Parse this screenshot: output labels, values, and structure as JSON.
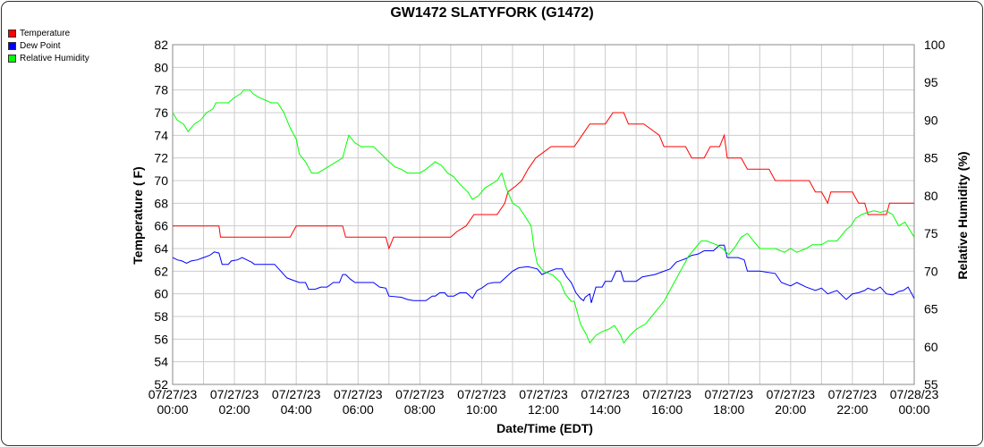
{
  "chart_data": {
    "type": "line",
    "title": "GW1472 SLATYFORK (G1472)",
    "xlabel": "Date/Time (EDT)",
    "ylabel_left": "Temperature ( F)",
    "ylabel_right": "Relative Humidity (%)",
    "x_ticks": [
      {
        "date": "07/27/23",
        "time": "00:00"
      },
      {
        "date": "07/27/23",
        "time": "02:00"
      },
      {
        "date": "07/27/23",
        "time": "04:00"
      },
      {
        "date": "07/27/23",
        "time": "06:00"
      },
      {
        "date": "07/27/23",
        "time": "08:00"
      },
      {
        "date": "07/27/23",
        "time": "10:00"
      },
      {
        "date": "07/27/23",
        "time": "12:00"
      },
      {
        "date": "07/27/23",
        "time": "14:00"
      },
      {
        "date": "07/27/23",
        "time": "16:00"
      },
      {
        "date": "07/27/23",
        "time": "18:00"
      },
      {
        "date": "07/27/23",
        "time": "20:00"
      },
      {
        "date": "07/27/23",
        "time": "22:00"
      },
      {
        "date": "07/28/23",
        "time": "00:00"
      }
    ],
    "x_range_hours": [
      0,
      24
    ],
    "ylim_left": [
      52,
      82
    ],
    "ylim_right": [
      55,
      100
    ],
    "yticks_left": [
      52,
      54,
      56,
      58,
      60,
      62,
      64,
      66,
      68,
      70,
      72,
      74,
      76,
      78,
      80,
      82
    ],
    "yticks_right": [
      55,
      60,
      65,
      70,
      75,
      80,
      85,
      90,
      95,
      100
    ],
    "grid": true,
    "legend_position": "top-left",
    "series": [
      {
        "name": "Temperature",
        "axis": "left",
        "color": "#ff0000",
        "points": [
          [
            0,
            66
          ],
          [
            1.5,
            66
          ],
          [
            1.55,
            65
          ],
          [
            3.8,
            65
          ],
          [
            4.0,
            66
          ],
          [
            5.5,
            66
          ],
          [
            5.6,
            65
          ],
          [
            6.9,
            65
          ],
          [
            7.0,
            64
          ],
          [
            7.15,
            65
          ],
          [
            9.0,
            65
          ],
          [
            9.2,
            65.5
          ],
          [
            9.5,
            66
          ],
          [
            9.75,
            67
          ],
          [
            10.5,
            67
          ],
          [
            10.75,
            68
          ],
          [
            10.85,
            69
          ],
          [
            11.1,
            69.5
          ],
          [
            11.3,
            70
          ],
          [
            11.5,
            71
          ],
          [
            11.75,
            72
          ],
          [
            12.0,
            72.5
          ],
          [
            12.25,
            73
          ],
          [
            13.0,
            73
          ],
          [
            13.25,
            74
          ],
          [
            13.5,
            75
          ],
          [
            14.0,
            75
          ],
          [
            14.25,
            76
          ],
          [
            14.6,
            76
          ],
          [
            14.75,
            75
          ],
          [
            15.25,
            75
          ],
          [
            15.5,
            74.5
          ],
          [
            15.75,
            74
          ],
          [
            15.9,
            73
          ],
          [
            16.6,
            73
          ],
          [
            16.8,
            72
          ],
          [
            17.2,
            72
          ],
          [
            17.4,
            73
          ],
          [
            17.7,
            73
          ],
          [
            17.85,
            74
          ],
          [
            17.95,
            72
          ],
          [
            18.4,
            72
          ],
          [
            18.6,
            71
          ],
          [
            19.3,
            71
          ],
          [
            19.5,
            70
          ],
          [
            20.6,
            70
          ],
          [
            20.8,
            69
          ],
          [
            21.0,
            69
          ],
          [
            21.2,
            68
          ],
          [
            21.3,
            69
          ],
          [
            22.0,
            69
          ],
          [
            22.2,
            68
          ],
          [
            22.4,
            68
          ],
          [
            22.5,
            67
          ],
          [
            23.1,
            67
          ],
          [
            23.2,
            68
          ],
          [
            24.0,
            68
          ]
        ]
      },
      {
        "name": "Dew Point",
        "axis": "left",
        "color": "#0000ff",
        "points": [
          [
            0,
            63.2
          ],
          [
            0.15,
            63
          ],
          [
            0.3,
            62.9
          ],
          [
            0.45,
            62.7
          ],
          [
            0.6,
            62.9
          ],
          [
            0.8,
            63
          ],
          [
            1.0,
            63.2
          ],
          [
            1.2,
            63.4
          ],
          [
            1.35,
            63.7
          ],
          [
            1.5,
            63.6
          ],
          [
            1.6,
            62.6
          ],
          [
            1.8,
            62.6
          ],
          [
            1.9,
            62.9
          ],
          [
            2.1,
            63
          ],
          [
            2.25,
            63.2
          ],
          [
            2.4,
            63
          ],
          [
            2.55,
            62.8
          ],
          [
            2.65,
            62.6
          ],
          [
            3.0,
            62.6
          ],
          [
            3.3,
            62.6
          ],
          [
            3.5,
            62
          ],
          [
            3.7,
            61.4
          ],
          [
            3.9,
            61.2
          ],
          [
            4.1,
            61
          ],
          [
            4.3,
            61
          ],
          [
            4.4,
            60.4
          ],
          [
            4.6,
            60.4
          ],
          [
            4.8,
            60.6
          ],
          [
            5.0,
            60.6
          ],
          [
            5.2,
            61
          ],
          [
            5.4,
            61
          ],
          [
            5.5,
            61.7
          ],
          [
            5.6,
            61.7
          ],
          [
            5.75,
            61.3
          ],
          [
            5.9,
            61
          ],
          [
            6.5,
            61
          ],
          [
            6.7,
            60.6
          ],
          [
            6.9,
            60.5
          ],
          [
            7.0,
            59.8
          ],
          [
            7.4,
            59.7
          ],
          [
            7.6,
            59.5
          ],
          [
            7.8,
            59.4
          ],
          [
            8.2,
            59.4
          ],
          [
            8.4,
            59.8
          ],
          [
            8.5,
            59.8
          ],
          [
            8.65,
            60.1
          ],
          [
            8.8,
            60.1
          ],
          [
            8.9,
            59.8
          ],
          [
            9.1,
            59.8
          ],
          [
            9.3,
            60.1
          ],
          [
            9.5,
            60.1
          ],
          [
            9.7,
            59.6
          ],
          [
            9.85,
            60.3
          ],
          [
            10.0,
            60.5
          ],
          [
            10.2,
            60.9
          ],
          [
            10.4,
            61
          ],
          [
            10.6,
            61
          ],
          [
            10.8,
            61.5
          ],
          [
            11.0,
            62
          ],
          [
            11.2,
            62.3
          ],
          [
            11.5,
            62.4
          ],
          [
            11.8,
            62.2
          ],
          [
            11.95,
            61.7
          ],
          [
            12.2,
            62
          ],
          [
            12.4,
            62.2
          ],
          [
            12.6,
            62.2
          ],
          [
            12.75,
            61.5
          ],
          [
            12.9,
            61
          ],
          [
            13.05,
            60.1
          ],
          [
            13.2,
            59.6
          ],
          [
            13.3,
            59.4
          ],
          [
            13.35,
            59.7
          ],
          [
            13.5,
            60
          ],
          [
            13.55,
            59.2
          ],
          [
            13.7,
            60.6
          ],
          [
            13.9,
            60.6
          ],
          [
            14.0,
            61.1
          ],
          [
            14.2,
            61.1
          ],
          [
            14.35,
            62
          ],
          [
            14.5,
            62
          ],
          [
            14.6,
            61.1
          ],
          [
            15.0,
            61.1
          ],
          [
            15.2,
            61.5
          ],
          [
            15.6,
            61.7
          ],
          [
            15.8,
            61.9
          ],
          [
            16.1,
            62.2
          ],
          [
            16.3,
            62.8
          ],
          [
            16.6,
            63.1
          ],
          [
            16.8,
            63.4
          ],
          [
            17.0,
            63.5
          ],
          [
            17.2,
            63.8
          ],
          [
            17.5,
            63.8
          ],
          [
            17.7,
            64.3
          ],
          [
            17.85,
            64.3
          ],
          [
            17.95,
            63.2
          ],
          [
            18.3,
            63.2
          ],
          [
            18.5,
            63
          ],
          [
            18.6,
            62
          ],
          [
            19.0,
            62
          ],
          [
            19.5,
            61.8
          ],
          [
            19.7,
            61
          ],
          [
            20.0,
            60.7
          ],
          [
            20.2,
            61
          ],
          [
            20.5,
            60.6
          ],
          [
            20.8,
            60.3
          ],
          [
            21.0,
            60.5
          ],
          [
            21.2,
            60
          ],
          [
            21.5,
            60.3
          ],
          [
            21.8,
            59.5
          ],
          [
            22.0,
            60
          ],
          [
            22.2,
            60.1
          ],
          [
            22.4,
            60.3
          ],
          [
            22.5,
            60.5
          ],
          [
            22.7,
            60.3
          ],
          [
            22.9,
            60.6
          ],
          [
            23.1,
            60
          ],
          [
            23.3,
            59.9
          ],
          [
            23.5,
            60.2
          ],
          [
            23.65,
            60.3
          ],
          [
            23.8,
            60.6
          ],
          [
            24.0,
            59.6
          ]
        ]
      },
      {
        "name": "Relative Humidity",
        "axis": "right",
        "color": "#00ff00",
        "points": [
          [
            0,
            91
          ],
          [
            0.15,
            90
          ],
          [
            0.35,
            89.5
          ],
          [
            0.5,
            88.5
          ],
          [
            0.7,
            89.5
          ],
          [
            0.9,
            90
          ],
          [
            1.1,
            91
          ],
          [
            1.3,
            91.5
          ],
          [
            1.4,
            92.3
          ],
          [
            1.8,
            92.3
          ],
          [
            2.0,
            93
          ],
          [
            2.2,
            93.5
          ],
          [
            2.3,
            94
          ],
          [
            2.5,
            94
          ],
          [
            2.6,
            93.5
          ],
          [
            2.8,
            93
          ],
          [
            3.2,
            92.3
          ],
          [
            3.4,
            92.3
          ],
          [
            3.6,
            91
          ],
          [
            3.8,
            89
          ],
          [
            4.0,
            87.5
          ],
          [
            4.1,
            85.5
          ],
          [
            4.3,
            84.5
          ],
          [
            4.5,
            83
          ],
          [
            4.7,
            83
          ],
          [
            4.9,
            83.5
          ],
          [
            5.1,
            84
          ],
          [
            5.3,
            84.5
          ],
          [
            5.5,
            85
          ],
          [
            5.6,
            86.5
          ],
          [
            5.7,
            88
          ],
          [
            5.9,
            87
          ],
          [
            6.1,
            86.5
          ],
          [
            6.5,
            86.5
          ],
          [
            6.75,
            85.5
          ],
          [
            7.0,
            84.5
          ],
          [
            7.2,
            83.8
          ],
          [
            7.4,
            83.5
          ],
          [
            7.6,
            83
          ],
          [
            8.0,
            83
          ],
          [
            8.2,
            83.5
          ],
          [
            8.35,
            84
          ],
          [
            8.5,
            84.5
          ],
          [
            8.7,
            84
          ],
          [
            8.9,
            83
          ],
          [
            9.1,
            82.5
          ],
          [
            9.3,
            81.5
          ],
          [
            9.55,
            80.5
          ],
          [
            9.7,
            79.5
          ],
          [
            9.9,
            80
          ],
          [
            10.1,
            81
          ],
          [
            10.3,
            81.5
          ],
          [
            10.5,
            82
          ],
          [
            10.65,
            83
          ],
          [
            10.8,
            81
          ],
          [
            11.0,
            79
          ],
          [
            11.2,
            78.5
          ],
          [
            11.4,
            77.3
          ],
          [
            11.6,
            76
          ],
          [
            11.7,
            73
          ],
          [
            11.8,
            71
          ],
          [
            12.0,
            70
          ],
          [
            12.3,
            69.5
          ],
          [
            12.55,
            68.5
          ],
          [
            12.7,
            67
          ],
          [
            12.9,
            66
          ],
          [
            13.0,
            66
          ],
          [
            13.2,
            63
          ],
          [
            13.4,
            61.5
          ],
          [
            13.5,
            60.5
          ],
          [
            13.7,
            61.5
          ],
          [
            13.9,
            62
          ],
          [
            14.1,
            62.3
          ],
          [
            14.3,
            62.8
          ],
          [
            14.5,
            61.5
          ],
          [
            14.6,
            60.5
          ],
          [
            14.8,
            61.5
          ],
          [
            15.0,
            62.3
          ],
          [
            15.3,
            63
          ],
          [
            15.5,
            64
          ],
          [
            15.7,
            65
          ],
          [
            15.9,
            66
          ],
          [
            16.1,
            67.5
          ],
          [
            16.3,
            69
          ],
          [
            16.5,
            70.5
          ],
          [
            16.7,
            72
          ],
          [
            16.9,
            73
          ],
          [
            17.1,
            74
          ],
          [
            17.3,
            74
          ],
          [
            17.6,
            73.5
          ],
          [
            17.8,
            73
          ],
          [
            18.0,
            72.2
          ],
          [
            18.2,
            73.2
          ],
          [
            18.4,
            74.5
          ],
          [
            18.6,
            75
          ],
          [
            18.8,
            74
          ],
          [
            19.0,
            73
          ],
          [
            19.5,
            73
          ],
          [
            19.8,
            72.5
          ],
          [
            20.0,
            73
          ],
          [
            20.2,
            72.5
          ],
          [
            20.5,
            73
          ],
          [
            20.7,
            73.5
          ],
          [
            21.0,
            73.5
          ],
          [
            21.2,
            74
          ],
          [
            21.5,
            74
          ],
          [
            21.7,
            75
          ],
          [
            21.8,
            75.5
          ],
          [
            21.95,
            76
          ],
          [
            22.1,
            77
          ],
          [
            22.3,
            77.5
          ],
          [
            22.5,
            77.8
          ],
          [
            22.7,
            78
          ],
          [
            22.9,
            77.8
          ],
          [
            23.1,
            78
          ],
          [
            23.3,
            77.5
          ],
          [
            23.5,
            76
          ],
          [
            23.7,
            76.5
          ],
          [
            23.85,
            75.5
          ],
          [
            24.0,
            74.5
          ]
        ]
      }
    ]
  }
}
